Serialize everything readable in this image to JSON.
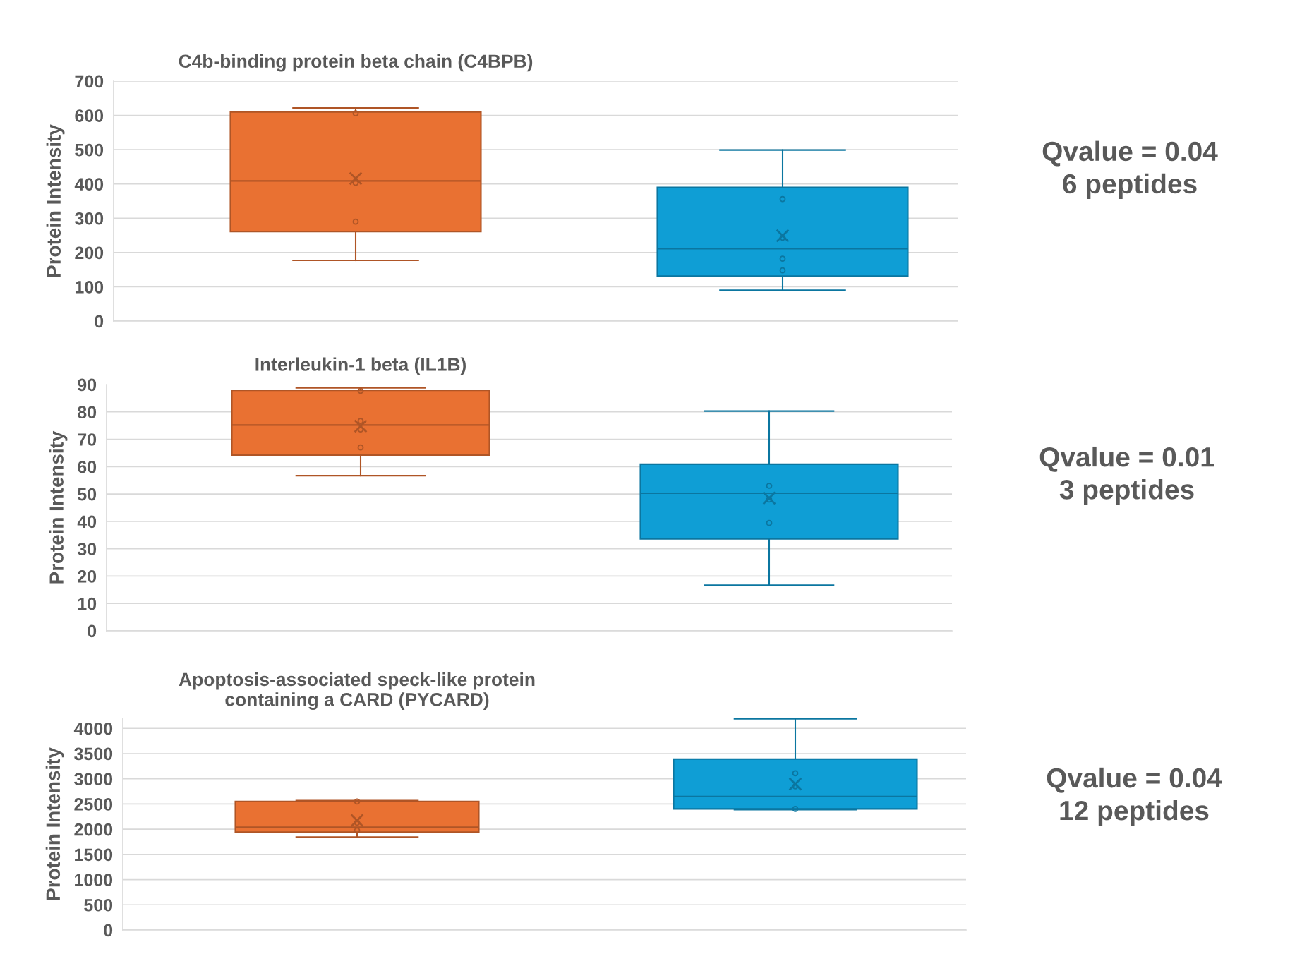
{
  "chart_data": [
    {
      "type": "box",
      "title": "C4b-binding protein beta chain (C4BPB)",
      "ylabel": "Protein Intensity",
      "categories": [
        null,
        null
      ],
      "ylim": [
        0,
        700
      ],
      "yticks": [
        0,
        100,
        200,
        300,
        400,
        500,
        600,
        700
      ],
      "grid": "y",
      "annotations": [
        "Qvalue = 0.04\n6 peptides"
      ],
      "colors": [
        "#e97132",
        "#0f9ed5"
      ],
      "boxes": [
        {
          "low": 177,
          "q1": 261,
          "median": 409,
          "q3": 610,
          "high": 622,
          "mean": 416,
          "outliers": [
            606,
            403,
            290
          ]
        },
        {
          "low": 90,
          "q1": 131,
          "median": 211,
          "q3": 390,
          "high": 499,
          "mean": 249,
          "outliers": [
            356,
            243,
            182,
            148
          ]
        }
      ]
    },
    {
      "type": "box",
      "title": "Interleukin-1 beta (IL1B)",
      "ylabel": "Protein Intensity",
      "categories": [
        null,
        null
      ],
      "ylim": [
        0,
        90
      ],
      "yticks": [
        0,
        10,
        20,
        30,
        40,
        50,
        60,
        70,
        80,
        90
      ],
      "grid": "y",
      "annotations": [
        "Qvalue = 0.01\n3 peptides"
      ],
      "colors": [
        "#e97132",
        "#0f9ed5"
      ],
      "boxes": [
        {
          "low": 56.7,
          "q1": 64.2,
          "median": 75.2,
          "q3": 87.9,
          "high": 88.8,
          "mean": 74.8,
          "outliers": [
            87.7,
            76.7,
            73.6,
            67
          ]
        },
        {
          "low": 16.7,
          "q1": 33.6,
          "median": 50.3,
          "q3": 60.9,
          "high": 80.3,
          "mean": 48.5,
          "outliers": [
            53,
            48,
            39.4
          ]
        }
      ]
    },
    {
      "type": "box",
      "title": "Apoptosis-associated speck-like protein\ncontaining a CARD (PYCARD)",
      "ylabel": "Protein Intensity",
      "categories": [
        null,
        null
      ],
      "ylim": [
        0,
        4200
      ],
      "yticks": [
        0,
        500,
        1000,
        1500,
        2000,
        2500,
        3000,
        3500,
        4000
      ],
      "grid": "y",
      "annotations": [
        "Qvalue = 0.04\n12 peptides"
      ],
      "colors": [
        "#e97132",
        "#0f9ed5"
      ],
      "boxes": [
        {
          "low": 1844,
          "q1": 1942,
          "median": 2041,
          "q3": 2551,
          "high": 2568,
          "mean": 2173,
          "outliers": [
            2550,
            2130,
            1975
          ]
        },
        {
          "low": 2387,
          "q1": 2403,
          "median": 2650,
          "q3": 3391,
          "high": 4190,
          "mean": 2897,
          "outliers": [
            3111,
            2850,
            2403
          ]
        }
      ]
    }
  ]
}
